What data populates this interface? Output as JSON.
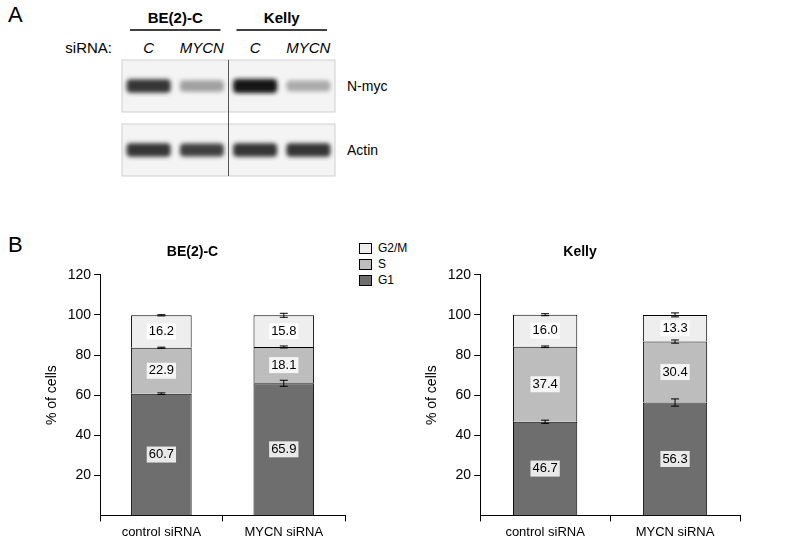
{
  "panel_labels": [
    "A",
    "B"
  ],
  "blot": {
    "lane_title": "siRNA:",
    "groups": [
      {
        "name": "BE(2)-C",
        "lanes": [
          "C",
          "MYCN"
        ]
      },
      {
        "name": "Kelly",
        "lanes": [
          "C",
          "MYCN"
        ]
      }
    ],
    "rows": [
      {
        "label": "N-myc",
        "intensity": [
          0.85,
          0.35,
          1.0,
          0.3
        ]
      },
      {
        "label": "Actin",
        "intensity": [
          0.85,
          0.8,
          0.85,
          0.85
        ]
      }
    ]
  },
  "chart_data": [
    {
      "type": "bar",
      "title": "BE(2)-C",
      "y_label": "% of cells",
      "categories": [
        "control siRNA",
        "MYCN siRNA"
      ],
      "stacked": true,
      "data_labels": true,
      "grid": false,
      "legend": "top right",
      "ylim": [
        0,
        120
      ],
      "yticks": [
        20,
        40,
        60,
        80,
        100,
        120
      ],
      "series": [
        {
          "name": "G1",
          "color": "#6e6e6e",
          "values": [
            60.7,
            65.9
          ],
          "value_labels": [
            "60.7",
            "65.9"
          ],
          "errors": [
            0.4,
            1.5
          ]
        },
        {
          "name": "S",
          "color": "#bdbdbd",
          "values": [
            22.9,
            18.1
          ],
          "value_labels": [
            "22.9",
            "18.1"
          ],
          "errors": [
            0.3,
            0.5
          ]
        },
        {
          "name": "G2/M",
          "color": "#eeeeee",
          "values": [
            16.2,
            15.8
          ],
          "value_labels": [
            "16.2",
            "15.8"
          ],
          "errors": [
            0.3,
            1.0
          ]
        }
      ]
    },
    {
      "type": "bar",
      "title": "Kelly",
      "y_label": "% of cells",
      "categories": [
        "control siRNA",
        "MYCN siRNA"
      ],
      "stacked": true,
      "data_labels": true,
      "grid": false,
      "ylim": [
        0,
        120
      ],
      "yticks": [
        20,
        40,
        60,
        80,
        100,
        120
      ],
      "series": [
        {
          "name": "G1",
          "color": "#6e6e6e",
          "values": [
            46.7,
            56.3
          ],
          "value_labels": [
            "46.7",
            "56.3"
          ],
          "errors": [
            0.8,
            1.8
          ]
        },
        {
          "name": "S",
          "color": "#bdbdbd",
          "values": [
            37.4,
            30.4
          ],
          "value_labels": [
            "37.4",
            "30.4"
          ],
          "errors": [
            0.4,
            0.8
          ]
        },
        {
          "name": "G2/M",
          "color": "#eeeeee",
          "values": [
            16.0,
            13.3
          ],
          "value_labels": [
            "16.0",
            "13.3"
          ],
          "errors": [
            0.5,
            1.0
          ]
        }
      ]
    }
  ]
}
